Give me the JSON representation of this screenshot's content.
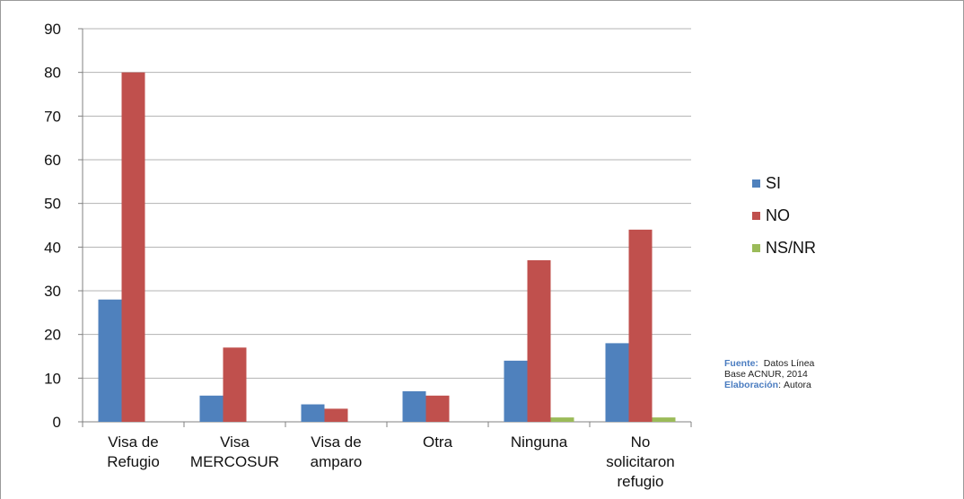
{
  "chart_data": {
    "type": "bar",
    "categories": [
      [
        "Visa de",
        "Refugio"
      ],
      [
        "Visa",
        "MERCOSUR"
      ],
      [
        "Visa de",
        "amparo"
      ],
      [
        "Otra"
      ],
      [
        "Ninguna"
      ],
      [
        "No",
        "solicitaron",
        "refugio"
      ]
    ],
    "series": [
      {
        "name": "SI",
        "color": "#4f81bd",
        "values": [
          28,
          6,
          4,
          7,
          14,
          18
        ]
      },
      {
        "name": "NO",
        "color": "#c0504d",
        "values": [
          80,
          17,
          3,
          6,
          37,
          44
        ]
      },
      {
        "name": "NS/NR",
        "color": "#9bbb59",
        "values": [
          0,
          0,
          0,
          0,
          1,
          1
        ]
      }
    ],
    "ylim": [
      0,
      90
    ],
    "yticks": [
      0,
      10,
      20,
      30,
      40,
      50,
      60,
      70,
      80,
      90
    ],
    "grid": true,
    "legend_position": "right"
  },
  "source_note": {
    "fuente_label": "Fuente:",
    "fuente_text": "Datos Línea",
    "fuente_text2": "Base ACNUR, 2014",
    "elaboracion_label": "Elaboración",
    "elaboracion_sep": ":",
    "elaboracion_text": "Autora"
  }
}
